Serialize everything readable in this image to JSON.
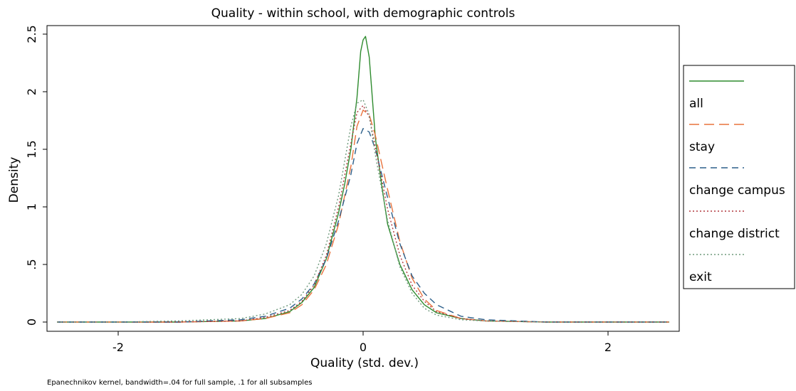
{
  "chart_data": {
    "type": "line",
    "title": "Quality - within school, with demographic controls",
    "xlabel": "Quality (std. dev.)",
    "ylabel": "Density",
    "note": "Epanechnikov kernel, bandwidth=.04 for full sample, .1 for all subsamples",
    "xlim": [
      -2.5,
      2.5
    ],
    "ylim": [
      0,
      2.5
    ],
    "x_ticks": [
      -2,
      0,
      2
    ],
    "x_tick_labels": [
      "-2",
      "0",
      "2"
    ],
    "y_ticks": [
      0,
      0.5,
      1,
      1.5,
      2,
      2.5
    ],
    "y_tick_labels": [
      "0",
      ".5",
      "1",
      "1.5",
      "2",
      "2.5"
    ],
    "grid": false,
    "legend_position": "right",
    "series": [
      {
        "name": "all",
        "color": "#2e8b2e",
        "dash": "solid",
        "points": [
          [
            -2.5,
            0
          ],
          [
            -2,
            0
          ],
          [
            -1.5,
            0
          ],
          [
            -1,
            0.01
          ],
          [
            -0.8,
            0.03
          ],
          [
            -0.6,
            0.09
          ],
          [
            -0.5,
            0.17
          ],
          [
            -0.4,
            0.3
          ],
          [
            -0.3,
            0.55
          ],
          [
            -0.2,
            0.95
          ],
          [
            -0.15,
            1.2
          ],
          [
            -0.1,
            1.5
          ],
          [
            -0.05,
            1.95
          ],
          [
            -0.02,
            2.35
          ],
          [
            0,
            2.45
          ],
          [
            0.02,
            2.48
          ],
          [
            0.05,
            2.3
          ],
          [
            0.1,
            1.6
          ],
          [
            0.15,
            1.2
          ],
          [
            0.2,
            0.85
          ],
          [
            0.3,
            0.5
          ],
          [
            0.4,
            0.28
          ],
          [
            0.5,
            0.15
          ],
          [
            0.6,
            0.08
          ],
          [
            0.8,
            0.03
          ],
          [
            1,
            0.01
          ],
          [
            1.5,
            0
          ],
          [
            2,
            0
          ],
          [
            2.5,
            0
          ]
        ]
      },
      {
        "name": "stay",
        "color": "#e8723c",
        "dash": "long-dash",
        "points": [
          [
            -2.5,
            0
          ],
          [
            -2,
            0
          ],
          [
            -1.5,
            0
          ],
          [
            -1,
            0.01
          ],
          [
            -0.8,
            0.03
          ],
          [
            -0.6,
            0.08
          ],
          [
            -0.5,
            0.15
          ],
          [
            -0.4,
            0.28
          ],
          [
            -0.3,
            0.5
          ],
          [
            -0.2,
            0.85
          ],
          [
            -0.1,
            1.35
          ],
          [
            -0.05,
            1.7
          ],
          [
            0,
            1.84
          ],
          [
            0.05,
            1.8
          ],
          [
            0.1,
            1.62
          ],
          [
            0.2,
            1.15
          ],
          [
            0.3,
            0.7
          ],
          [
            0.4,
            0.38
          ],
          [
            0.5,
            0.2
          ],
          [
            0.6,
            0.1
          ],
          [
            0.8,
            0.03
          ],
          [
            1,
            0.01
          ],
          [
            1.5,
            0
          ],
          [
            2,
            0
          ],
          [
            2.5,
            0
          ]
        ]
      },
      {
        "name": "change campus",
        "color": "#2c5f8a",
        "dash": "dash",
        "points": [
          [
            -2.5,
            0
          ],
          [
            -2,
            0
          ],
          [
            -1.5,
            0
          ],
          [
            -1,
            0.02
          ],
          [
            -0.8,
            0.05
          ],
          [
            -0.6,
            0.12
          ],
          [
            -0.5,
            0.2
          ],
          [
            -0.4,
            0.33
          ],
          [
            -0.3,
            0.55
          ],
          [
            -0.2,
            0.88
          ],
          [
            -0.1,
            1.28
          ],
          [
            -0.05,
            1.55
          ],
          [
            0,
            1.68
          ],
          [
            0.05,
            1.65
          ],
          [
            0.1,
            1.5
          ],
          [
            0.2,
            1.08
          ],
          [
            0.3,
            0.68
          ],
          [
            0.4,
            0.4
          ],
          [
            0.5,
            0.25
          ],
          [
            0.6,
            0.15
          ],
          [
            0.8,
            0.05
          ],
          [
            1,
            0.02
          ],
          [
            1.5,
            0
          ],
          [
            2,
            0
          ],
          [
            2.5,
            0
          ]
        ]
      },
      {
        "name": "change district",
        "color": "#b0373c",
        "dash": "dot",
        "points": [
          [
            -2.5,
            0
          ],
          [
            -2,
            0
          ],
          [
            -1.5,
            0
          ],
          [
            -1,
            0.01
          ],
          [
            -0.8,
            0.04
          ],
          [
            -0.6,
            0.1
          ],
          [
            -0.5,
            0.18
          ],
          [
            -0.4,
            0.32
          ],
          [
            -0.3,
            0.58
          ],
          [
            -0.2,
            1
          ],
          [
            -0.1,
            1.55
          ],
          [
            -0.05,
            1.82
          ],
          [
            0,
            1.88
          ],
          [
            0.05,
            1.78
          ],
          [
            0.1,
            1.52
          ],
          [
            0.2,
            0.98
          ],
          [
            0.3,
            0.58
          ],
          [
            0.4,
            0.32
          ],
          [
            0.5,
            0.18
          ],
          [
            0.6,
            0.09
          ],
          [
            0.8,
            0.03
          ],
          [
            1,
            0.01
          ],
          [
            1.5,
            0
          ],
          [
            2,
            0
          ],
          [
            2.5,
            0
          ]
        ]
      },
      {
        "name": "exit",
        "color": "#6f9a7c",
        "dash": "dot",
        "points": [
          [
            -2.5,
            0
          ],
          [
            -2,
            0
          ],
          [
            -1.5,
            0.01
          ],
          [
            -1,
            0.03
          ],
          [
            -0.8,
            0.07
          ],
          [
            -0.6,
            0.15
          ],
          [
            -0.5,
            0.24
          ],
          [
            -0.4,
            0.4
          ],
          [
            -0.3,
            0.68
          ],
          [
            -0.2,
            1.1
          ],
          [
            -0.1,
            1.7
          ],
          [
            -0.05,
            1.9
          ],
          [
            0,
            1.93
          ],
          [
            0.05,
            1.8
          ],
          [
            0.1,
            1.45
          ],
          [
            0.2,
            0.88
          ],
          [
            0.3,
            0.48
          ],
          [
            0.4,
            0.25
          ],
          [
            0.5,
            0.12
          ],
          [
            0.6,
            0.06
          ],
          [
            0.8,
            0.02
          ],
          [
            1,
            0.01
          ],
          [
            1.5,
            0
          ],
          [
            2,
            0
          ],
          [
            2.5,
            0
          ]
        ]
      }
    ]
  }
}
